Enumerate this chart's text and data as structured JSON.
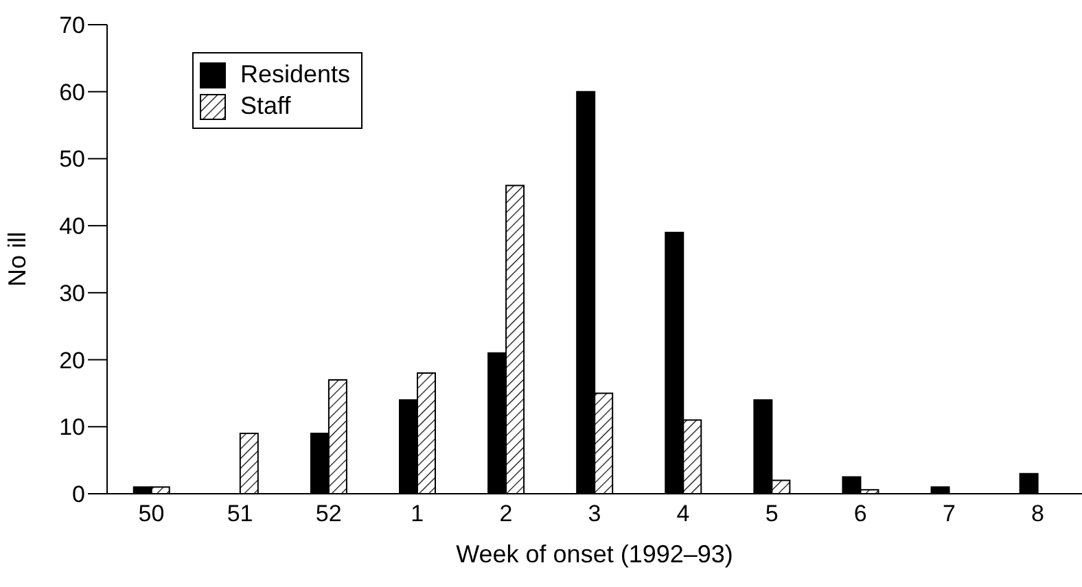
{
  "chart_data": {
    "type": "bar",
    "xlabel": "Week of onset (1992–93)",
    "ylabel": "No ill",
    "categories": [
      "50",
      "51",
      "52",
      "1",
      "2",
      "3",
      "4",
      "5",
      "6",
      "7",
      "8"
    ],
    "series": [
      {
        "name": "Residents",
        "color": "#000000",
        "values": [
          1,
          0,
          9,
          14,
          21,
          60,
          39,
          14,
          2.5,
          1,
          3
        ]
      },
      {
        "name": "Staff",
        "color": "#000000",
        "values": [
          1,
          9,
          17,
          18,
          46,
          15,
          11,
          2,
          0.6,
          0,
          0
        ]
      }
    ],
    "ylim": [
      0,
      70
    ],
    "yticks": [
      0,
      10,
      20,
      30,
      40,
      50,
      60,
      70
    ],
    "grid": false,
    "legend": "top left"
  }
}
